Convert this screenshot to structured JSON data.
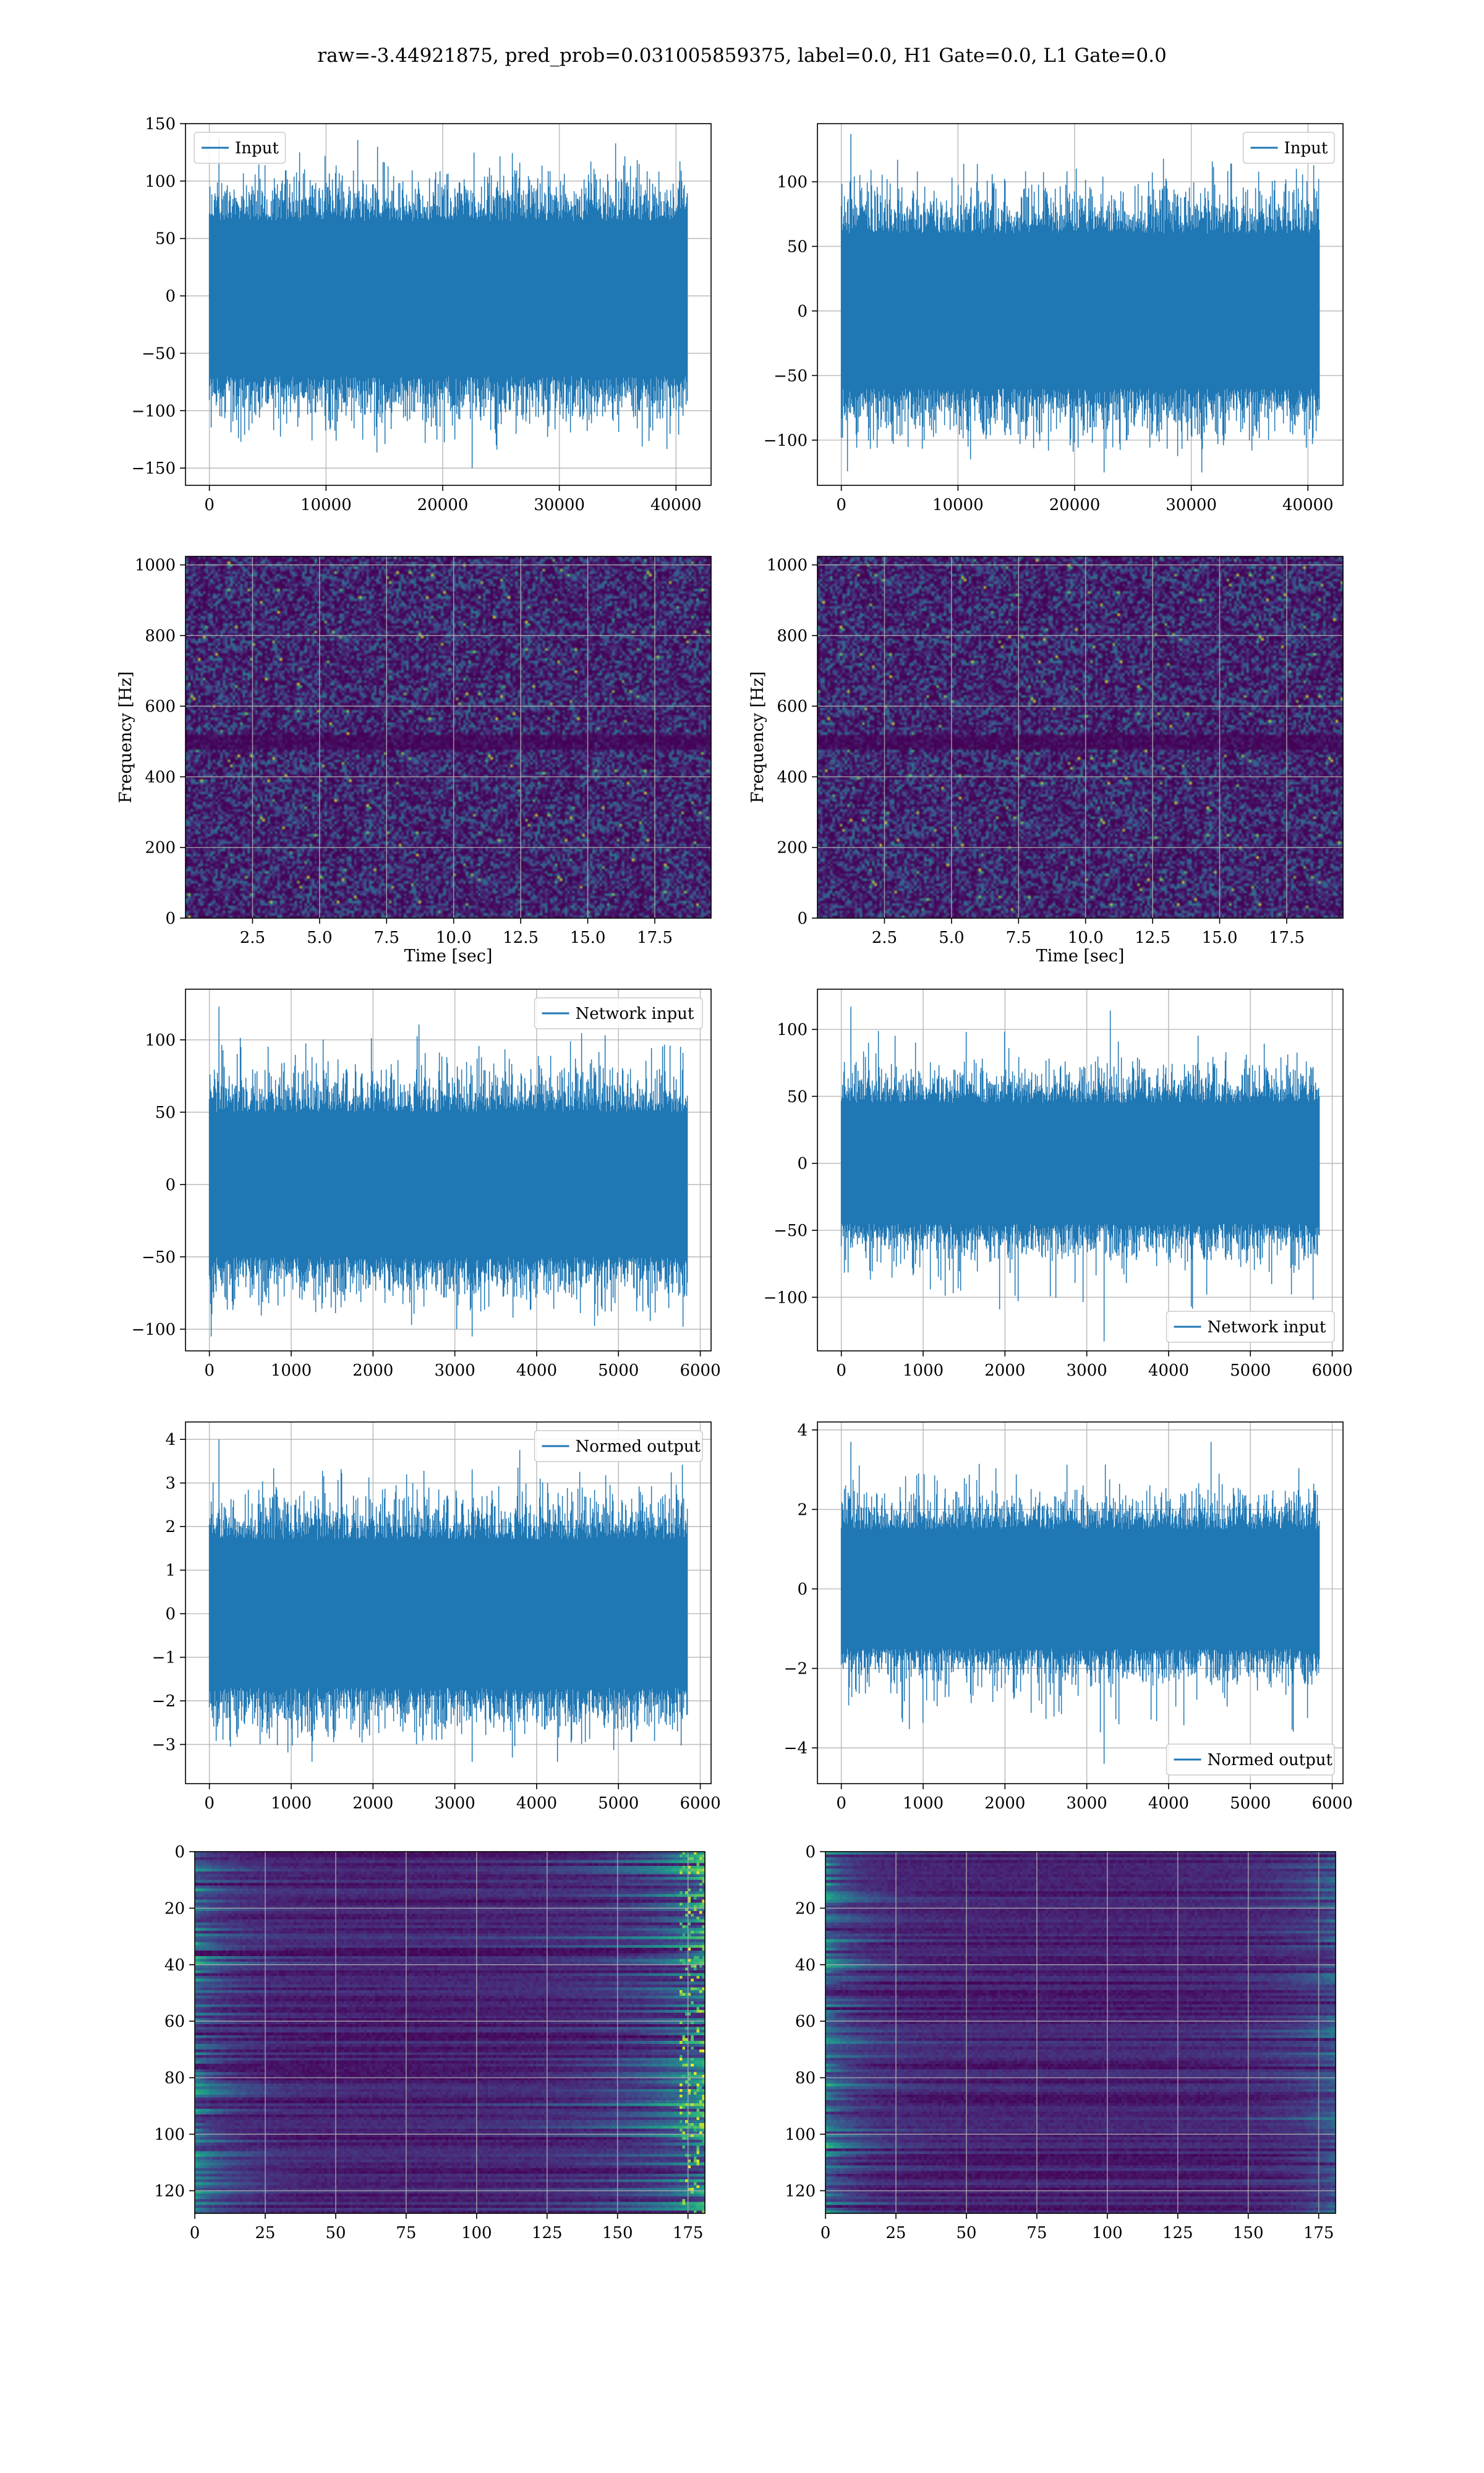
{
  "suptitle": "raw=-3.44921875, pred_prob=0.031005859375, label=0.0, H1 Gate=0.0, L1 Gate=0.0",
  "colors": {
    "line": "#1f77b4",
    "grid": "#b0b0b0",
    "viridis_dark": "#440154"
  },
  "chart_data": [
    {
      "id": "strain-h1",
      "type": "line",
      "x_range": [
        0,
        40960
      ],
      "xlim": [
        -2048,
        43008
      ],
      "ylim": [
        -165,
        150
      ],
      "xticks": [
        0,
        10000,
        20000,
        30000,
        40000
      ],
      "xtick_labels": [
        "0",
        "10000",
        "20000",
        "30000",
        "40000"
      ],
      "yticks": [
        -150,
        -100,
        -50,
        0,
        50,
        100,
        150
      ],
      "ytick_labels": [
        "−150",
        "−100",
        "−50",
        "0",
        "50",
        "100",
        "150"
      ],
      "band": [
        -70,
        65
      ],
      "spike_range": [
        -150,
        138
      ],
      "xlabel": "",
      "ylabel": "",
      "grid": true,
      "legend": {
        "entries": [
          "Input"
        ],
        "loc": "upper left"
      }
    },
    {
      "id": "strain-l1",
      "type": "line",
      "x_range": [
        0,
        40960
      ],
      "xlim": [
        -2048,
        43008
      ],
      "ylim": [
        -135,
        145
      ],
      "xticks": [
        0,
        10000,
        20000,
        30000,
        40000
      ],
      "xtick_labels": [
        "0",
        "10000",
        "20000",
        "30000",
        "40000"
      ],
      "yticks": [
        -100,
        -50,
        0,
        50,
        100
      ],
      "ytick_labels": [
        "−100",
        "−50",
        "0",
        "50",
        "100"
      ],
      "band": [
        -60,
        60
      ],
      "spike_range": [
        -125,
        137
      ],
      "xlabel": "",
      "ylabel": "",
      "grid": true,
      "legend": {
        "entries": [
          "Input"
        ],
        "loc": "upper right"
      }
    },
    {
      "id": "spectrogram-h1",
      "type": "heatmap",
      "colormap": "viridis",
      "xlim": [
        0,
        19.6
      ],
      "ylim": [
        0,
        1024
      ],
      "xticks": [
        2.5,
        5.0,
        7.5,
        10.0,
        12.5,
        15.0,
        17.5
      ],
      "xtick_labels": [
        "2.5",
        "5.0",
        "7.5",
        "10.0",
        "12.5",
        "15.0",
        "17.5"
      ],
      "yticks": [
        0,
        200,
        400,
        600,
        800,
        1000
      ],
      "ytick_labels": [
        "0",
        "200",
        "400",
        "600",
        "800",
        "1000"
      ],
      "xlabel": "Time [sec]",
      "ylabel": "Frequency [Hz]",
      "grid": true,
      "dark_band_hz": [
        480,
        520
      ]
    },
    {
      "id": "spectrogram-l1",
      "type": "heatmap",
      "colormap": "viridis",
      "xlim": [
        0,
        19.6
      ],
      "ylim": [
        0,
        1024
      ],
      "xticks": [
        2.5,
        5.0,
        7.5,
        10.0,
        12.5,
        15.0,
        17.5
      ],
      "xtick_labels": [
        "2.5",
        "5.0",
        "7.5",
        "10.0",
        "12.5",
        "15.0",
        "17.5"
      ],
      "yticks": [
        0,
        200,
        400,
        600,
        800,
        1000
      ],
      "ytick_labels": [
        "0",
        "200",
        "400",
        "600",
        "800",
        "1000"
      ],
      "xlabel": "Time [sec]",
      "ylabel": "Frequency [Hz]",
      "grid": true,
      "dark_band_hz": [
        480,
        520
      ]
    },
    {
      "id": "network-input-h1",
      "type": "line",
      "x_range": [
        0,
        5840
      ],
      "xlim": [
        -292,
        6132
      ],
      "ylim": [
        -115,
        135
      ],
      "xticks": [
        0,
        1000,
        2000,
        3000,
        4000,
        5000,
        6000
      ],
      "xtick_labels": [
        "0",
        "1000",
        "2000",
        "3000",
        "4000",
        "5000",
        "6000"
      ],
      "yticks": [
        -100,
        -50,
        0,
        50,
        100
      ],
      "ytick_labels": [
        "−100",
        "−50",
        "0",
        "50",
        "100"
      ],
      "band": [
        -50,
        50
      ],
      "spike_range": [
        -105,
        123
      ],
      "xlabel": "",
      "ylabel": "",
      "grid": true,
      "legend": {
        "entries": [
          "Network input"
        ],
        "loc": "upper right"
      }
    },
    {
      "id": "network-input-l1",
      "type": "line",
      "x_range": [
        0,
        5840
      ],
      "xlim": [
        -292,
        6132
      ],
      "ylim": [
        -140,
        130
      ],
      "xticks": [
        0,
        1000,
        2000,
        3000,
        4000,
        5000,
        6000
      ],
      "xtick_labels": [
        "0",
        "1000",
        "2000",
        "3000",
        "4000",
        "5000",
        "6000"
      ],
      "yticks": [
        -100,
        -50,
        0,
        50,
        100
      ],
      "ytick_labels": [
        "−100",
        "−50",
        "0",
        "50",
        "100"
      ],
      "band": [
        -45,
        45
      ],
      "spike_range": [
        -133,
        117
      ],
      "xlabel": "",
      "ylabel": "",
      "grid": true,
      "legend": {
        "entries": [
          "Network input"
        ],
        "loc": "lower right"
      }
    },
    {
      "id": "normed-output-h1",
      "type": "line",
      "x_range": [
        0,
        5840
      ],
      "xlim": [
        -292,
        6132
      ],
      "ylim": [
        -3.9,
        4.4
      ],
      "xticks": [
        0,
        1000,
        2000,
        3000,
        4000,
        5000,
        6000
      ],
      "xtick_labels": [
        "0",
        "1000",
        "2000",
        "3000",
        "4000",
        "5000",
        "6000"
      ],
      "yticks": [
        -3,
        -2,
        -1,
        0,
        1,
        2,
        3,
        4
      ],
      "ytick_labels": [
        "−3",
        "−2",
        "−1",
        "0",
        "1",
        "2",
        "3",
        "4"
      ],
      "band": [
        -1.7,
        1.7
      ],
      "spike_range": [
        -3.4,
        4.0
      ],
      "xlabel": "",
      "ylabel": "",
      "grid": true,
      "legend": {
        "entries": [
          "Normed output"
        ],
        "loc": "upper right"
      }
    },
    {
      "id": "normed-output-l1",
      "type": "line",
      "x_range": [
        0,
        5840
      ],
      "xlim": [
        -292,
        6132
      ],
      "ylim": [
        -4.9,
        4.2
      ],
      "xticks": [
        0,
        1000,
        2000,
        3000,
        4000,
        5000,
        6000
      ],
      "xtick_labels": [
        "0",
        "1000",
        "2000",
        "3000",
        "4000",
        "5000",
        "6000"
      ],
      "yticks": [
        -4,
        -2,
        0,
        2,
        4
      ],
      "ytick_labels": [
        "−4",
        "−2",
        "0",
        "2",
        "4"
      ],
      "band": [
        -1.5,
        1.5
      ],
      "spike_range": [
        -4.4,
        3.7
      ],
      "xlabel": "",
      "ylabel": "",
      "grid": true,
      "legend": {
        "entries": [
          "Normed output"
        ],
        "loc": "lower right"
      }
    },
    {
      "id": "feature-map-h1",
      "type": "heatmap",
      "colormap": "viridis",
      "xlim": [
        0,
        181
      ],
      "ylim": [
        128,
        0
      ],
      "xticks": [
        0,
        25,
        50,
        75,
        100,
        125,
        150,
        175
      ],
      "xtick_labels": [
        "0",
        "25",
        "50",
        "75",
        "100",
        "125",
        "150",
        "175"
      ],
      "yticks": [
        0,
        20,
        40,
        60,
        80,
        100,
        120
      ],
      "ytick_labels": [
        "0",
        "20",
        "40",
        "60",
        "80",
        "100",
        "120"
      ],
      "xlabel": "",
      "ylabel": "",
      "grid": true
    },
    {
      "id": "feature-map-l1",
      "type": "heatmap",
      "colormap": "viridis",
      "xlim": [
        0,
        181
      ],
      "ylim": [
        128,
        0
      ],
      "xticks": [
        0,
        25,
        50,
        75,
        100,
        125,
        150,
        175
      ],
      "xtick_labels": [
        "0",
        "25",
        "50",
        "75",
        "100",
        "125",
        "150",
        "175"
      ],
      "yticks": [
        0,
        20,
        40,
        60,
        80,
        100,
        120
      ],
      "ytick_labels": [
        "0",
        "20",
        "40",
        "60",
        "80",
        "100",
        "120"
      ],
      "xlabel": "",
      "ylabel": "",
      "grid": true
    }
  ]
}
